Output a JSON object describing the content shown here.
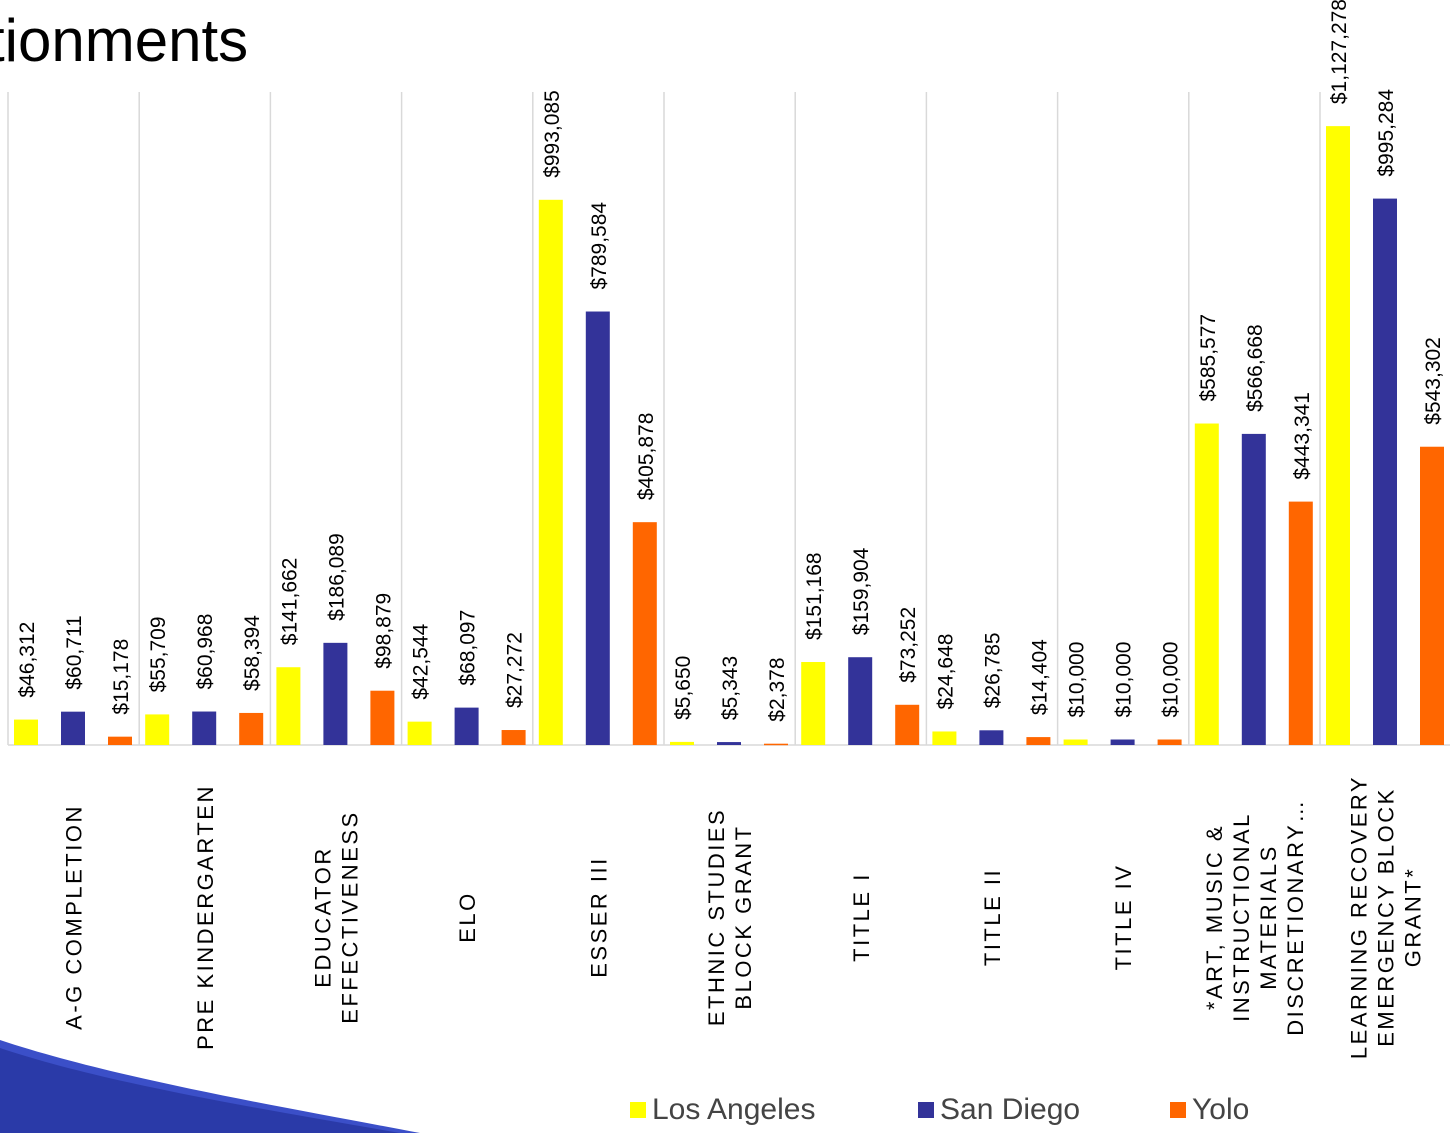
{
  "slide_title": "tionments",
  "colors": {
    "los_angeles": "#FFFF00",
    "san_diego": "#333399",
    "yolo": "#FF6600",
    "grid": "#D9D9D9"
  },
  "chart_data": {
    "type": "bar",
    "title": "",
    "xlabel": "",
    "ylabel": "",
    "ylim": [
      0,
      1200000
    ],
    "grid": true,
    "legend_position": "bottom",
    "categories": [
      "A-G COMPLETION",
      "PRE KINDERGARTEN",
      "EDUCATOR EFFECTIVENESS",
      "ELO",
      "ESSER III",
      "ETHNIC STUDIES BLOCK GRANT",
      "TITLE I",
      "TITLE II",
      "TITLE IV",
      "*ART, MUSIC & INSTRUCTIONAL MATERIALS DISCRETIONARY…",
      "LEARNING RECOVERY EMERGENCY BLOCK GRANT*"
    ],
    "series": [
      {
        "name": "Los Angeles",
        "color": "#FFFF00",
        "values": [
          46312,
          55709,
          141662,
          42544,
          993085,
          5650,
          151168,
          24648,
          10000,
          585577,
          1127278
        ],
        "labels": [
          "$46,312",
          "$55,709",
          "$141,662",
          "$42,544",
          "$993,085",
          "$5,650",
          "$151,168",
          "$24,648",
          "$10,000",
          "$585,577",
          "$1,127,278"
        ]
      },
      {
        "name": "San Diego",
        "color": "#333399",
        "values": [
          60711,
          60968,
          186089,
          68097,
          789584,
          5343,
          159904,
          26785,
          10000,
          566668,
          995284
        ],
        "labels": [
          "$60,711",
          "$60,968",
          "$186,089",
          "$68,097",
          "$789,584",
          "$5,343",
          "$159,904",
          "$26,785",
          "$10,000",
          "$566,668",
          "$995,284"
        ]
      },
      {
        "name": "Yolo",
        "color": "#FF6600",
        "values": [
          15178,
          58394,
          98879,
          27272,
          405878,
          2378,
          73252,
          14404,
          10000,
          443341,
          543302
        ],
        "labels": [
          "$15,178",
          "$58,394",
          "$98,879",
          "$27,272",
          "$405,878",
          "$2,378",
          "$73,252",
          "$14,404",
          "$10,000",
          "$443,341",
          "$543,302"
        ]
      }
    ]
  }
}
